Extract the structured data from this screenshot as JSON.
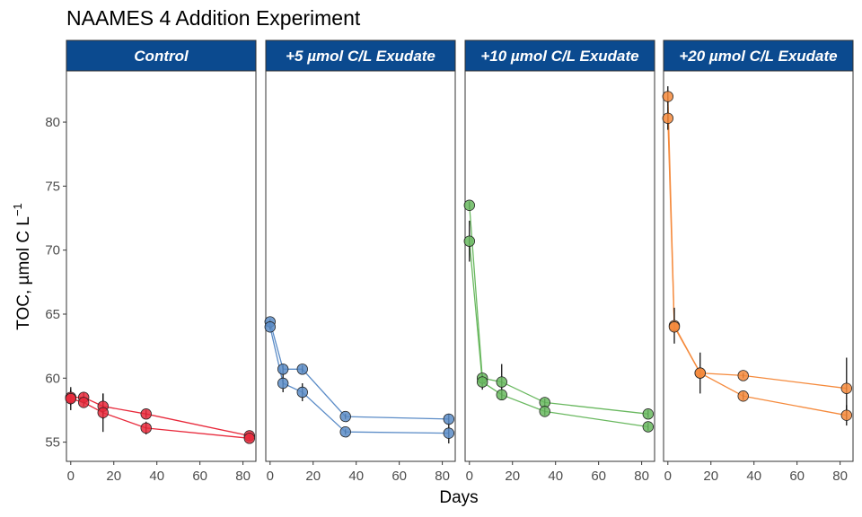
{
  "chart_data": {
    "type": "scatter",
    "title": "NAAMES 4 Addition Experiment",
    "xlabel": "Days",
    "ylabel": "TOC, µmol C L",
    "ylabel_superscript": "−1",
    "xlim": [
      -2,
      86
    ],
    "ylim": [
      53.5,
      84
    ],
    "x_ticks": [
      0,
      20,
      40,
      60,
      80
    ],
    "y_ticks": [
      55,
      60,
      65,
      70,
      75,
      80
    ],
    "strip_color": "#0b4a8f",
    "panels": [
      {
        "label": "Control",
        "color": "#e8293b",
        "series": [
          {
            "x": [
              0,
              6,
              15,
              35,
              83
            ],
            "y": [
              58.5,
              58.5,
              57.8,
              57.2,
              55.5
            ],
            "err": [
              0.6,
              0.4,
              1.0,
              0.3,
              0.2
            ]
          },
          {
            "x": [
              0,
              6,
              15,
              35,
              83
            ],
            "y": [
              58.4,
              58.1,
              57.3,
              56.1,
              55.3
            ],
            "err": [
              0.9,
              0.3,
              1.5,
              0.5,
              0.2
            ]
          }
        ]
      },
      {
        "label": "+5 µmol C/L Exudate",
        "color": "#5b8cc7",
        "series": [
          {
            "x": [
              0,
              6,
              15,
              35,
              83
            ],
            "y": [
              64.4,
              60.7,
              60.7,
              57.0,
              56.8
            ],
            "err": [
              0.2,
              0.4,
              0.3,
              0.2,
              0.4
            ]
          },
          {
            "x": [
              0,
              6,
              15,
              35,
              83
            ],
            "y": [
              64.0,
              59.6,
              58.9,
              55.8,
              55.7
            ],
            "err": [
              0.2,
              0.7,
              0.7,
              0.2,
              0.8
            ]
          }
        ]
      },
      {
        "label": "+10 µmol C/L Exudate",
        "color": "#69b85f",
        "series": [
          {
            "x": [
              0,
              6,
              15,
              35,
              83
            ],
            "y": [
              73.5,
              60.0,
              59.7,
              58.1,
              57.2
            ],
            "err": [
              0.3,
              0.3,
              1.4,
              0.3,
              0.3
            ]
          },
          {
            "x": [
              0,
              6,
              15,
              35,
              83
            ],
            "y": [
              70.7,
              59.7,
              58.7,
              57.4,
              56.2
            ],
            "err": [
              1.6,
              0.6,
              0.3,
              0.3,
              0.3
            ]
          }
        ]
      },
      {
        "label": "+20 µmol C/L Exudate",
        "color": "#f58a3c",
        "series": [
          {
            "x": [
              0,
              3,
              15,
              35,
              83
            ],
            "y": [
              82.0,
              64.1,
              60.4,
              60.2,
              59.2
            ],
            "err": [
              0.8,
              1.4,
              1.6,
              0.2,
              2.4
            ]
          },
          {
            "x": [
              0,
              3,
              15,
              35,
              83
            ],
            "y": [
              80.3,
              64.0,
              60.4,
              58.6,
              57.1
            ],
            "err": [
              0.9,
              0.3,
              0.3,
              0.3,
              0.8
            ]
          }
        ]
      }
    ]
  }
}
